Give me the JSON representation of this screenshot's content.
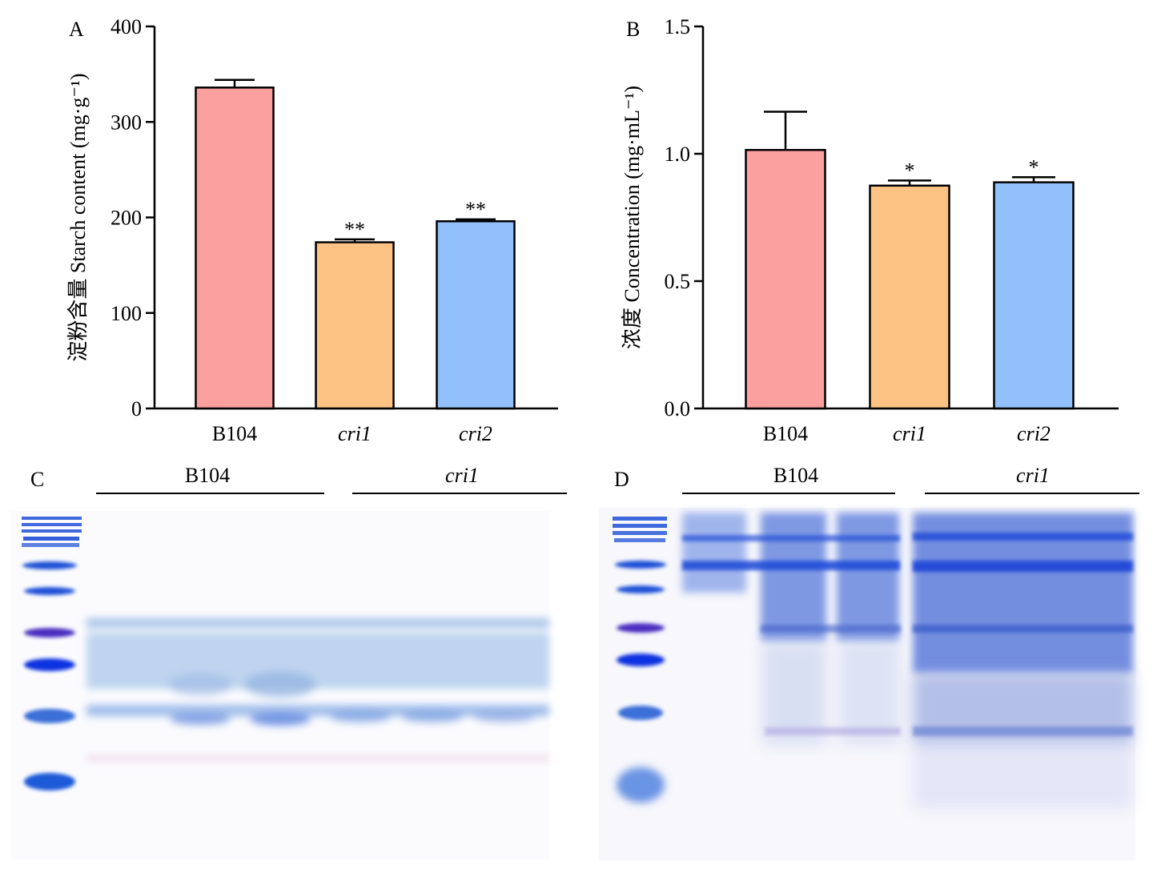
{
  "chart_data": [
    {
      "panel": "A",
      "type": "bar",
      "ylabel": "淀粉含量 Starch content (mg·g⁻¹)",
      "ylim": [
        0,
        400
      ],
      "yticks": [
        0,
        100,
        200,
        300,
        400
      ],
      "categories": [
        "B104",
        "cri1",
        "cri2"
      ],
      "values": [
        336,
        174,
        196
      ],
      "errors": [
        8,
        3,
        2
      ],
      "significance": [
        "",
        "**",
        "**"
      ],
      "colors": [
        "#fc9f9f",
        "#fdc384",
        "#92c0fa"
      ],
      "grid": false
    },
    {
      "panel": "B",
      "type": "bar",
      "ylabel": "浓度 Concentration (mg·mL⁻¹)",
      "ylim": [
        0,
        1.5
      ],
      "yticks": [
        "0.0",
        "0.5",
        "1.0",
        "1.5"
      ],
      "categories": [
        "B104",
        "cri1",
        "cri2"
      ],
      "values": [
        1.015,
        0.875,
        0.888
      ],
      "errors": [
        0.15,
        0.02,
        0.02
      ],
      "significance": [
        "",
        "*",
        "*"
      ],
      "colors": [
        "#fc9f9f",
        "#fdc384",
        "#92c0fa"
      ],
      "grid": false
    }
  ],
  "gels": [
    {
      "panel": "C",
      "left_group": "B104",
      "right_group": "cri1"
    },
    {
      "panel": "D",
      "left_group": "B104",
      "right_group": "cri1"
    }
  ]
}
